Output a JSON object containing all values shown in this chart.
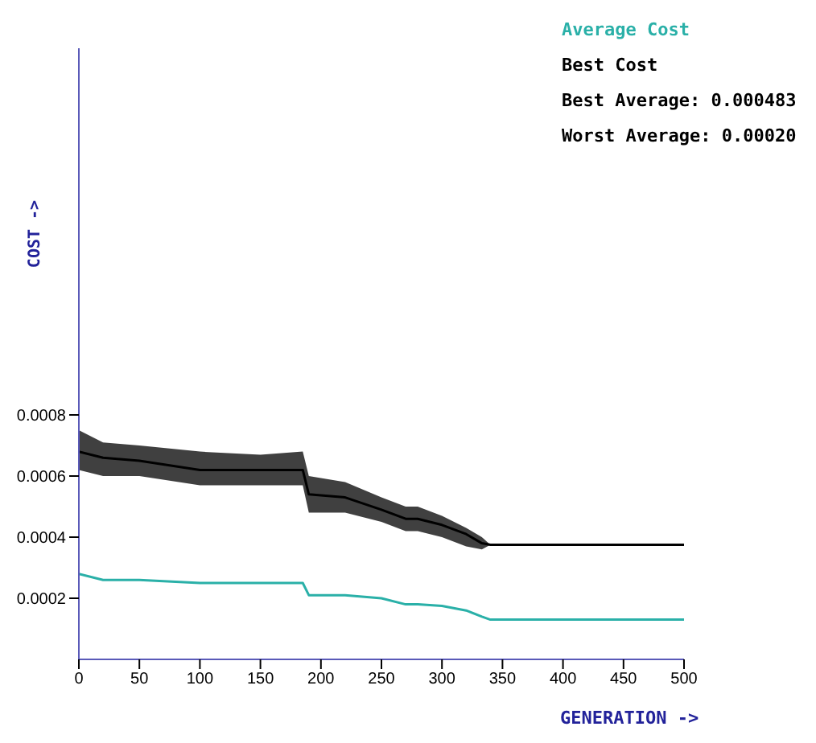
{
  "chart_data": {
    "type": "line",
    "xlabel": "GENERATION ->",
    "ylabel": "COST ->",
    "x": [
      0,
      20,
      50,
      100,
      150,
      185,
      190,
      220,
      250,
      270,
      280,
      300,
      320,
      333,
      340,
      500
    ],
    "series": [
      {
        "name": "Average Cost",
        "color": "#2ab0a8",
        "values": [
          0.00028,
          0.00026,
          0.00026,
          0.00025,
          0.00025,
          0.00025,
          0.00021,
          0.00021,
          0.0002,
          0.00018,
          0.00018,
          0.000175,
          0.00016,
          0.00014,
          0.00013,
          0.00013
        ]
      },
      {
        "name": "Best Cost",
        "color": "#000000",
        "values": [
          0.00068,
          0.00066,
          0.00065,
          0.00062,
          0.00062,
          0.00062,
          0.00054,
          0.00053,
          0.00049,
          0.00046,
          0.00046,
          0.00044,
          0.00041,
          0.00038,
          0.000375,
          0.000375
        ],
        "lower": [
          0.00062,
          0.0006,
          0.0006,
          0.00057,
          0.00057,
          0.00057,
          0.00048,
          0.00048,
          0.00045,
          0.00042,
          0.00042,
          0.0004,
          0.00037,
          0.00036,
          0.000375,
          0.000375
        ],
        "upper": [
          0.00075,
          0.00071,
          0.0007,
          0.00068,
          0.00067,
          0.00068,
          0.0006,
          0.00058,
          0.00053,
          0.0005,
          0.0005,
          0.00047,
          0.00043,
          0.0004,
          0.000375,
          0.000375
        ]
      }
    ],
    "annotations": [
      "Best Average: 0.000483",
      "Worst Average: 0.00020"
    ],
    "xlim": [
      0,
      500
    ],
    "xticks": [
      0,
      50,
      100,
      150,
      200,
      250,
      300,
      350,
      400,
      450,
      500
    ],
    "ylim": [
      0,
      0.002
    ],
    "yticks": [
      0.0002,
      0.0004,
      0.0006,
      0.0008
    ],
    "legend": "top right",
    "grid": false,
    "marker": "none",
    "line_style": "solid"
  }
}
